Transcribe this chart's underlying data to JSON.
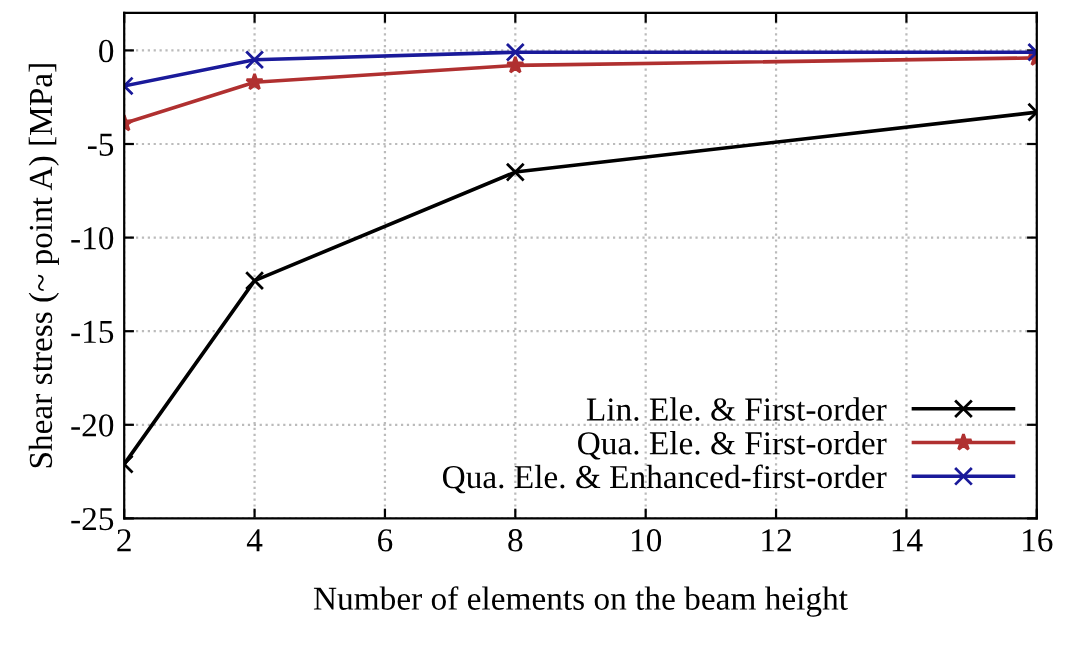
{
  "chart_data": {
    "type": "line",
    "xlabel": "Number of elements on the beam height",
    "ylabel": "Shear stress (~ point A) [MPa]",
    "x": [
      2,
      4,
      8,
      16
    ],
    "xlim": [
      2,
      16
    ],
    "xticks": [
      2,
      4,
      6,
      8,
      10,
      12,
      14,
      16
    ],
    "ylim": [
      -25,
      2
    ],
    "yticks": [
      -25,
      -20,
      -15,
      -10,
      -5,
      0
    ],
    "grid": true,
    "legend": "bottom right",
    "line_style": "solid",
    "series": [
      {
        "name": "Lin. Ele. & First-order",
        "color": "#000000",
        "marker": "cross",
        "values": [
          -22.1,
          -12.3,
          -6.5,
          -3.3
        ]
      },
      {
        "name": "Qua. Ele. & First-order",
        "color": "#b03030",
        "marker": "star",
        "values": [
          -3.9,
          -1.7,
          -0.8,
          -0.4
        ]
      },
      {
        "name": "Qua. Ele. & Enhanced-first-order",
        "color": "#1a1a9a",
        "marker": "cross",
        "values": [
          -1.9,
          -0.5,
          -0.1,
          -0.1
        ]
      }
    ]
  }
}
